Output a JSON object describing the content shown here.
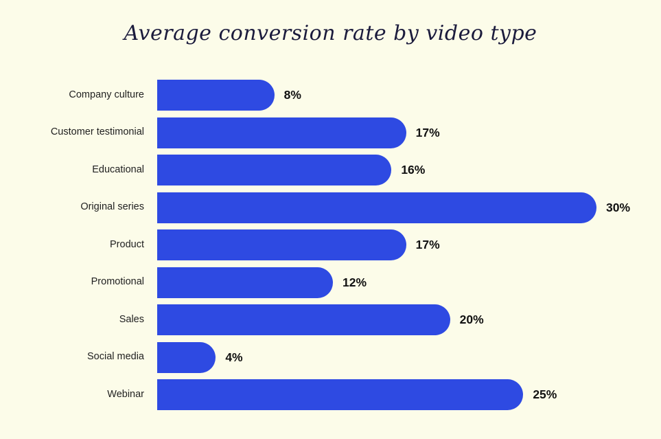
{
  "page": {
    "background_color": "#FCFCE9"
  },
  "chart_data": {
    "type": "bar",
    "orientation": "horizontal",
    "title": "Average conversion rate by video type",
    "categories": [
      "Company culture",
      "Customer testimonial",
      "Educational",
      "Original series",
      "Product",
      "Promotional",
      "Sales",
      "Social media",
      "Webinar"
    ],
    "values": [
      8,
      17,
      16,
      30,
      17,
      12,
      20,
      4,
      25
    ],
    "value_labels": [
      "8%",
      "17%",
      "16%",
      "30%",
      "17%",
      "12%",
      "20%",
      "4%",
      "25%"
    ],
    "xlabel": "",
    "ylabel": "",
    "xlim": [
      0,
      30
    ],
    "grid": false,
    "legend": false,
    "bar_color": "#2E4AE2",
    "title_color": "#1B1B3C",
    "category_label_color": "#212121",
    "value_label_color": "#111111"
  }
}
